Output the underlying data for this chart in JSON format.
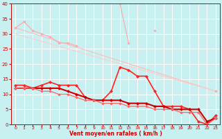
{
  "xlabel": "Vent moyen/en rafales ( km/h )",
  "background_color": "#c8f0f0",
  "grid_color": "#ffffff",
  "x": [
    0,
    1,
    2,
    3,
    4,
    5,
    6,
    7,
    8,
    9,
    10,
    11,
    12,
    13,
    14,
    15,
    16,
    17,
    18,
    19,
    20,
    21,
    22,
    23
  ],
  "line1": [
    32,
    34,
    31,
    30,
    29,
    27,
    27,
    26,
    null,
    null,
    null,
    null,
    40,
    27,
    null,
    null,
    31,
    null,
    null,
    null,
    null,
    null,
    null,
    11
  ],
  "line2": [
    30,
    32,
    29,
    28,
    27,
    26,
    25,
    24,
    null,
    null,
    null,
    null,
    null,
    null,
    null,
    null,
    null,
    null,
    null,
    null,
    null,
    null,
    null,
    11
  ],
  "line3": [
    13,
    13,
    12,
    13,
    14,
    13,
    13,
    13,
    9,
    8,
    8,
    11,
    19,
    18,
    16,
    16,
    11,
    6,
    6,
    6,
    5,
    1,
    0,
    3
  ],
  "line4": [
    12,
    12,
    12,
    12,
    12,
    12,
    11,
    10,
    9,
    8,
    8,
    8,
    8,
    7,
    7,
    7,
    6,
    6,
    5,
    5,
    5,
    5,
    1,
    2
  ],
  "line5": [
    12,
    12,
    12,
    11,
    11,
    10,
    10,
    9,
    8,
    8,
    7,
    7,
    7,
    6,
    6,
    6,
    5,
    5,
    5,
    4,
    4,
    4,
    0,
    2
  ],
  "line1_color": "#ffaaaa",
  "line2_color": "#ffbbbb",
  "line3_color": "#ff2222",
  "line4_color": "#cc0000",
  "line5_color": "#ff6666",
  "ylim": [
    0,
    40
  ],
  "xlim": [
    -0.5,
    23.5
  ],
  "yticks": [
    0,
    5,
    10,
    15,
    20,
    25,
    30,
    35,
    40
  ],
  "xticks": [
    0,
    1,
    2,
    3,
    4,
    5,
    6,
    7,
    8,
    9,
    10,
    11,
    12,
    13,
    14,
    15,
    16,
    17,
    18,
    19,
    20,
    21,
    22,
    23
  ]
}
